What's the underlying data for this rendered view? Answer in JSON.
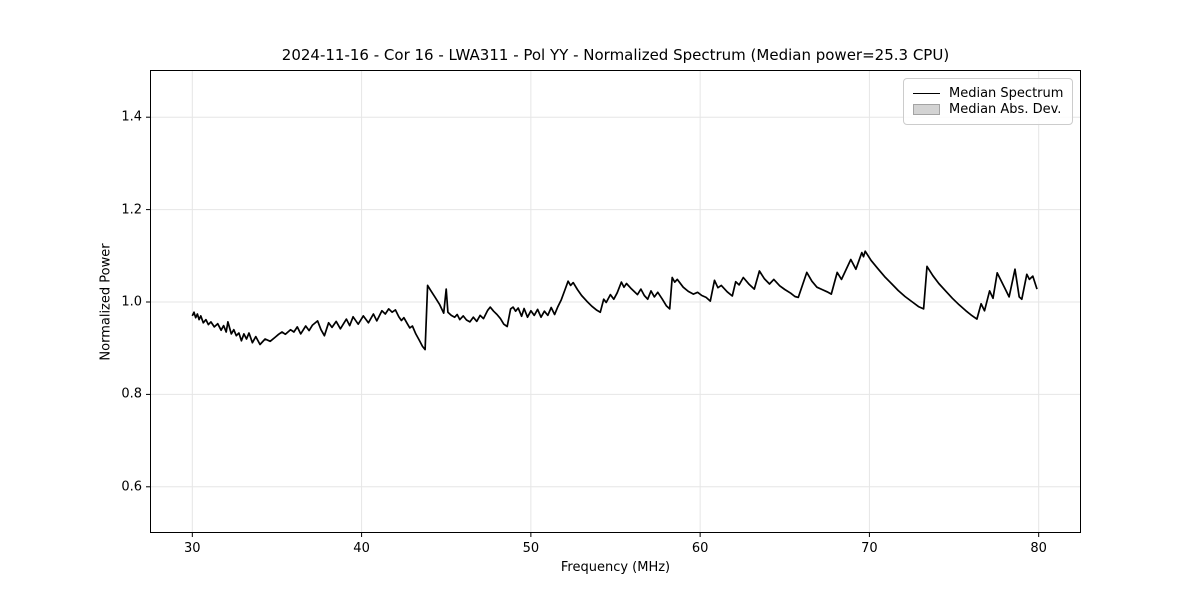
{
  "figure": {
    "background": "#ffffff"
  },
  "colors": {
    "line": "#000000",
    "grid": "#e6e6e6",
    "spine": "#000000",
    "tick": "#000000",
    "legend_border": "#cccccc",
    "patch_fill": "#d3d3d3",
    "patch_edge": "#a3a3a3"
  },
  "chart_data": {
    "type": "line",
    "title": "2024-11-16 - Cor 16 - LWA311 - Pol YY - Normalized Spectrum (Median power=25.3 CPU)",
    "xlabel": "Frequency (MHz)",
    "ylabel": "Normalized Power",
    "xlim": [
      27.5,
      82.5
    ],
    "ylim": [
      0.5,
      1.5
    ],
    "x_ticks": [
      30,
      40,
      50,
      60,
      70,
      80
    ],
    "x_tick_labels": [
      "30",
      "40",
      "50",
      "60",
      "70",
      "80"
    ],
    "y_ticks": [
      0.6,
      0.8,
      1.0,
      1.2,
      1.4
    ],
    "y_tick_labels": [
      "0.6",
      "0.8",
      "1.0",
      "1.2",
      "1.4"
    ],
    "grid": true,
    "legend": {
      "position": "upper right",
      "entries": [
        {
          "label": "Median Spectrum",
          "type": "line",
          "color": "#000000"
        },
        {
          "label": "Median Abs. Dev.",
          "type": "patch",
          "fill": "#d3d3d3",
          "edge": "#a3a3a3"
        }
      ]
    },
    "series": [
      {
        "name": "Median Spectrum",
        "color": "#000000",
        "x": [
          30.0,
          30.1,
          30.2,
          30.3,
          30.4,
          30.5,
          30.65,
          30.8,
          30.95,
          31.1,
          31.3,
          31.5,
          31.7,
          31.85,
          32.0,
          32.1,
          32.3,
          32.45,
          32.6,
          32.75,
          32.9,
          33.05,
          33.2,
          33.35,
          33.55,
          33.75,
          34.0,
          34.3,
          34.6,
          34.9,
          35.1,
          35.3,
          35.5,
          35.8,
          36.0,
          36.2,
          36.4,
          36.7,
          36.9,
          37.1,
          37.4,
          37.6,
          37.8,
          38.05,
          38.25,
          38.5,
          38.75,
          39.1,
          39.3,
          39.5,
          39.8,
          40.1,
          40.4,
          40.7,
          40.9,
          41.2,
          41.4,
          41.6,
          41.8,
          42.0,
          42.2,
          42.35,
          42.5,
          42.7,
          42.85,
          43.0,
          43.2,
          43.4,
          43.6,
          43.75,
          43.9,
          44.1,
          44.35,
          44.6,
          44.85,
          45.0,
          45.1,
          45.3,
          45.5,
          45.65,
          45.8,
          46.0,
          46.2,
          46.4,
          46.6,
          46.8,
          47.0,
          47.2,
          47.45,
          47.6,
          47.8,
          48.0,
          48.2,
          48.4,
          48.6,
          48.8,
          48.95,
          49.1,
          49.25,
          49.45,
          49.6,
          49.8,
          50.0,
          50.2,
          50.4,
          50.6,
          50.8,
          51.0,
          51.2,
          51.4,
          51.6,
          51.8,
          52.0,
          52.2,
          52.35,
          52.5,
          52.75,
          53.0,
          53.3,
          53.6,
          53.9,
          54.1,
          54.3,
          54.45,
          54.7,
          54.9,
          55.1,
          55.35,
          55.5,
          55.65,
          55.9,
          56.1,
          56.3,
          56.5,
          56.7,
          56.9,
          57.1,
          57.3,
          57.5,
          57.75,
          58.0,
          58.2,
          58.35,
          58.5,
          58.65,
          59.0,
          59.3,
          59.6,
          59.85,
          60.1,
          60.35,
          60.6,
          60.85,
          61.05,
          61.25,
          61.6,
          61.9,
          62.1,
          62.3,
          62.55,
          62.9,
          63.2,
          63.5,
          63.8,
          64.1,
          64.35,
          64.7,
          65.0,
          65.35,
          65.6,
          65.8,
          66.3,
          66.6,
          66.9,
          67.2,
          67.5,
          67.75,
          68.1,
          68.35,
          68.9,
          69.2,
          69.55,
          69.65,
          69.75,
          70.1,
          70.5,
          70.9,
          71.3,
          71.7,
          72.1,
          72.5,
          72.9,
          73.2,
          73.4,
          73.75,
          74.1,
          74.5,
          74.9,
          75.3,
          75.7,
          76.0,
          76.35,
          76.6,
          76.8,
          77.1,
          77.3,
          77.55,
          78.0,
          78.25,
          78.6,
          78.85,
          79.0,
          79.3,
          79.45,
          79.65,
          79.9
        ],
        "y": [
          0.97,
          0.978,
          0.966,
          0.974,
          0.962,
          0.97,
          0.955,
          0.962,
          0.951,
          0.957,
          0.946,
          0.953,
          0.939,
          0.949,
          0.935,
          0.957,
          0.931,
          0.94,
          0.927,
          0.933,
          0.916,
          0.931,
          0.92,
          0.933,
          0.912,
          0.925,
          0.908,
          0.92,
          0.915,
          0.924,
          0.93,
          0.935,
          0.93,
          0.94,
          0.935,
          0.946,
          0.931,
          0.948,
          0.938,
          0.95,
          0.959,
          0.94,
          0.927,
          0.955,
          0.945,
          0.958,
          0.942,
          0.963,
          0.949,
          0.968,
          0.952,
          0.97,
          0.955,
          0.974,
          0.959,
          0.981,
          0.974,
          0.985,
          0.978,
          0.983,
          0.968,
          0.96,
          0.966,
          0.953,
          0.944,
          0.948,
          0.931,
          0.918,
          0.904,
          0.897,
          1.036,
          1.024,
          1.01,
          0.995,
          0.976,
          1.028,
          0.978,
          0.971,
          0.967,
          0.973,
          0.962,
          0.97,
          0.961,
          0.957,
          0.967,
          0.958,
          0.971,
          0.964,
          0.982,
          0.989,
          0.98,
          0.973,
          0.964,
          0.952,
          0.947,
          0.985,
          0.989,
          0.98,
          0.987,
          0.969,
          0.986,
          0.967,
          0.981,
          0.971,
          0.984,
          0.967,
          0.98,
          0.971,
          0.988,
          0.973,
          0.99,
          1.005,
          1.025,
          1.045,
          1.036,
          1.042,
          1.027,
          1.014,
          1.002,
          0.991,
          0.982,
          0.978,
          1.006,
          0.999,
          1.016,
          1.006,
          1.02,
          1.043,
          1.032,
          1.04,
          1.03,
          1.023,
          1.016,
          1.028,
          1.014,
          1.006,
          1.024,
          1.011,
          1.021,
          1.007,
          0.992,
          0.985,
          1.053,
          1.043,
          1.049,
          1.032,
          1.023,
          1.017,
          1.021,
          1.014,
          1.01,
          1.002,
          1.047,
          1.031,
          1.036,
          1.022,
          1.013,
          1.044,
          1.037,
          1.053,
          1.038,
          1.028,
          1.067,
          1.05,
          1.039,
          1.049,
          1.035,
          1.027,
          1.019,
          1.012,
          1.01,
          1.064,
          1.045,
          1.032,
          1.027,
          1.022,
          1.017,
          1.064,
          1.049,
          1.092,
          1.071,
          1.107,
          1.098,
          1.11,
          1.09,
          1.072,
          1.055,
          1.04,
          1.025,
          1.012,
          1.001,
          0.99,
          0.985,
          1.077,
          1.057,
          1.04,
          1.024,
          1.008,
          0.994,
          0.981,
          0.972,
          0.963,
          0.996,
          0.981,
          1.024,
          1.008,
          1.063,
          1.03,
          1.011,
          1.071,
          1.011,
          1.006,
          1.06,
          1.049,
          1.056,
          1.028
        ]
      }
    ]
  }
}
